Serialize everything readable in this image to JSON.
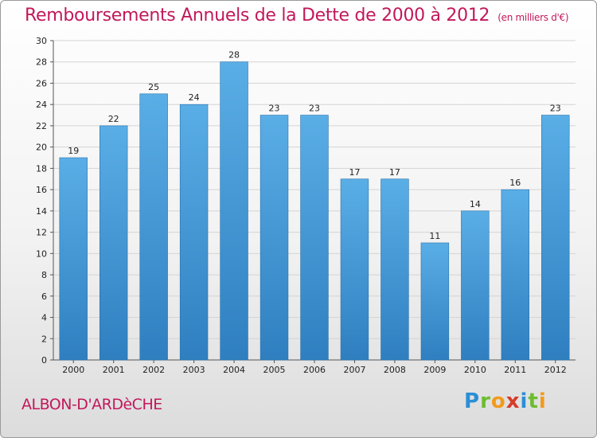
{
  "title": "Remboursements Annuels de la Dette de 2000 à 2012",
  "subtitle": "(en milliers d'€)",
  "commune": "ALBON-D'ARDèCHE",
  "logo": {
    "letters": [
      {
        "ch": "P",
        "color": "#2a8fd6"
      },
      {
        "ch": "r",
        "color": "#6cbd2d"
      },
      {
        "ch": "o",
        "color": "#f29a1c"
      },
      {
        "ch": "x",
        "color": "#d83b2a"
      },
      {
        "ch": "i",
        "color": "#2a8fd6"
      },
      {
        "ch": "t",
        "color": "#6cbd2d"
      },
      {
        "ch": "i",
        "color": "#f29a1c"
      }
    ]
  },
  "colors": {
    "bar_light": "#5aaee6",
    "bar_dark": "#2f7fc0",
    "title": "#c2185b",
    "grid": "#d4d4d4"
  },
  "chart_data": {
    "type": "bar",
    "title": "Remboursements Annuels de la Dette de 2000 à 2012",
    "subtitle": "(en milliers d'€)",
    "categories": [
      "2000",
      "2001",
      "2002",
      "2003",
      "2004",
      "2005",
      "2006",
      "2007",
      "2008",
      "2009",
      "2010",
      "2011",
      "2012"
    ],
    "values": [
      19,
      22,
      25,
      24,
      28,
      23,
      23,
      17,
      17,
      11,
      14,
      16,
      23
    ],
    "ylim": [
      0,
      30
    ],
    "yticks": [
      0,
      2,
      4,
      6,
      8,
      10,
      12,
      14,
      16,
      18,
      20,
      22,
      24,
      26,
      28,
      30
    ],
    "grid": true,
    "data_labels": true
  }
}
